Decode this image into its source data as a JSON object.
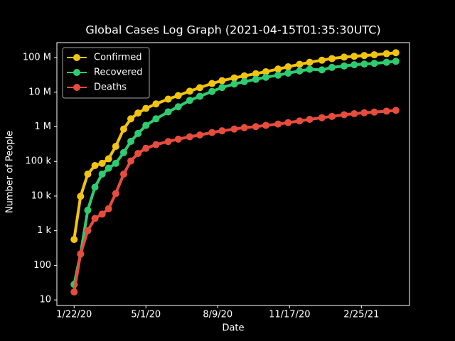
{
  "chart_data": {
    "type": "line",
    "title": "Global Cases Log Graph (2021-04-15T01:35:30UTC)",
    "x_label": "Date",
    "y_label": "Number of People",
    "x": [
      "1/22/20",
      "1/31/20",
      "2/10/20",
      "2/20/20",
      "3/1/20",
      "3/10/20",
      "3/20/20",
      "3/31/20",
      "4/10/20",
      "4/20/20",
      "5/1/20",
      "5/15/20",
      "6/1/20",
      "6/15/20",
      "7/1/20",
      "7/15/20",
      "8/1/20",
      "8/15/20",
      "9/1/20",
      "9/15/20",
      "10/1/20",
      "10/15/20",
      "11/1/20",
      "11/15/20",
      "12/1/20",
      "12/15/20",
      "1/1/21",
      "1/15/21",
      "2/1/21",
      "2/15/21",
      "3/1/21",
      "3/15/21",
      "4/1/21",
      "4/14/21"
    ],
    "series": [
      {
        "name": "Confirmed",
        "color": "#f1c40f",
        "values": [
          555,
          9800,
          43000,
          76000,
          88000,
          119000,
          272000,
          860000,
          1700000,
          2500000,
          3400000,
          4600000,
          6300000,
          8000000,
          10700000,
          13500000,
          17800000,
          21500000,
          25800000,
          29600000,
          34200000,
          39000000,
          46600000,
          54000000,
          64000000,
          73000000,
          84000000,
          93500000,
          103000000,
          109000000,
          114500000,
          120500000,
          129500000,
          138000000
        ]
      },
      {
        "name": "Recovered",
        "color": "#2ecc71",
        "values": [
          28,
          210,
          3900,
          18000,
          43000,
          64000,
          88000,
          180000,
          380000,
          640000,
          1100000,
          1700000,
          2700000,
          3800000,
          5800000,
          7600000,
          10500000,
          13700000,
          17200000,
          20200000,
          23500000,
          27000000,
          31000000,
          35500000,
          41000000,
          46000000,
          44000000,
          52000000,
          57000000,
          62000000,
          65000000,
          68000000,
          73000000,
          78000000
        ]
      },
      {
        "name": "Deaths",
        "color": "#e74c3c",
        "values": [
          17,
          213,
          1000,
          2250,
          3000,
          4300,
          11800,
          43000,
          103000,
          170000,
          240000,
          305000,
          375000,
          440000,
          515000,
          580000,
          685000,
          765000,
          860000,
          945000,
          1010000,
          1100000,
          1200000,
          1320000,
          1480000,
          1640000,
          1830000,
          2000000,
          2230000,
          2390000,
          2550000,
          2660000,
          2830000,
          2980000
        ]
      }
    ],
    "xlim": [
      "12/29/19",
      "5/3/21"
    ],
    "xticks": [
      "1/22/20",
      "5/1/20",
      "8/9/20",
      "11/17/20",
      "2/25/21"
    ],
    "ylim": [
      6.9,
      270000000
    ],
    "log_y": true,
    "yticks": [
      10,
      100,
      {
        "value": 1000,
        "label": "1 k"
      },
      {
        "value": 10000,
        "label": "10 k"
      },
      {
        "value": 100000,
        "label": "100 k"
      },
      {
        "value": 1000000,
        "label": "1 M"
      },
      {
        "value": 10000000,
        "label": "10 M"
      },
      {
        "value": 100000000,
        "label": "100 M"
      }
    ],
    "legend": "upper left"
  }
}
